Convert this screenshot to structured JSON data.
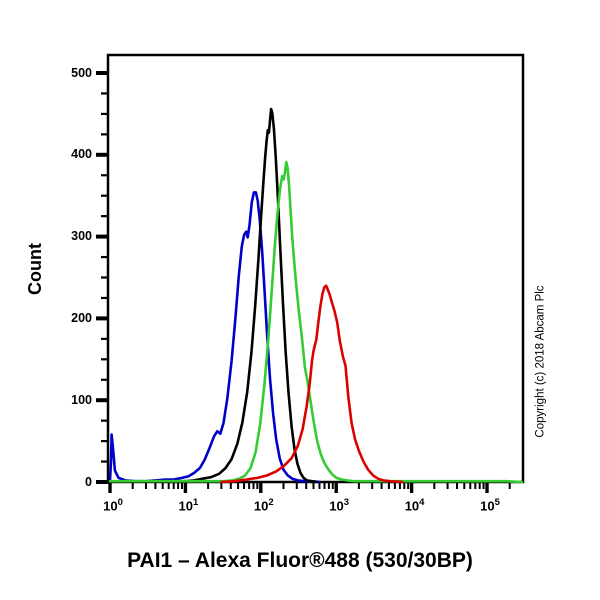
{
  "figure": {
    "title": "PAI1 – Alexa Fluor®488 (530/30BP)",
    "copyright_text": "Copyright (c) 2018 Abcam Plc",
    "y_axis": {
      "label": "Count",
      "major_ticks": [
        0,
        100,
        200,
        300,
        400,
        500
      ],
      "minor_step": 25,
      "max_count": 522
    },
    "x_axis": {
      "base": "10",
      "exponents": [
        0,
        1,
        2,
        3,
        4,
        5
      ],
      "max_value": 300000
    }
  },
  "chart_data": {
    "type": "line",
    "subtype": "flow-cytometry-histogram",
    "title": "PAI1 – Alexa Fluor®488 (530/30BP)",
    "xlabel": "PAI1 – Alexa Fluor®488 (530/30BP)",
    "ylabel": "Count",
    "x_scale": "log10",
    "xlim": [
      1,
      300000
    ],
    "ylim": [
      0,
      522
    ],
    "grid": false,
    "legend_position": "none",
    "axis_color": "#000000",
    "series": [
      {
        "name": "blue",
        "color": "#0000cc",
        "points": [
          [
            1,
            2
          ],
          [
            1.03,
            25
          ],
          [
            1.05,
            58
          ],
          [
            1.1,
            40
          ],
          [
            1.16,
            14
          ],
          [
            1.3,
            5
          ],
          [
            1.6,
            2
          ],
          [
            2.2,
            1
          ],
          [
            3,
            1
          ],
          [
            4,
            2
          ],
          [
            5.5,
            3
          ],
          [
            7,
            3
          ],
          [
            9,
            5
          ],
          [
            11,
            7
          ],
          [
            13,
            11
          ],
          [
            15.5,
            17
          ],
          [
            18,
            27
          ],
          [
            21,
            42
          ],
          [
            24,
            56
          ],
          [
            26.5,
            62
          ],
          [
            29,
            59
          ],
          [
            32,
            72
          ],
          [
            36,
            102
          ],
          [
            41,
            148
          ],
          [
            46,
            200
          ],
          [
            51,
            252
          ],
          [
            56,
            288
          ],
          [
            60,
            302
          ],
          [
            64,
            306
          ],
          [
            67,
            299
          ],
          [
            71,
            315
          ],
          [
            76,
            342
          ],
          [
            81,
            354
          ],
          [
            86,
            354
          ],
          [
            91,
            344
          ],
          [
            97,
            320
          ],
          [
            104,
            283
          ],
          [
            112,
            235
          ],
          [
            121,
            182
          ],
          [
            132,
            128
          ],
          [
            145,
            85
          ],
          [
            160,
            52
          ],
          [
            178,
            29
          ],
          [
            200,
            15
          ],
          [
            228,
            8
          ],
          [
            262,
            4
          ],
          [
            310,
            2
          ],
          [
            380,
            1
          ],
          [
            480,
            1
          ],
          [
            600,
            0
          ]
        ]
      },
      {
        "name": "black",
        "color": "#000000",
        "points": [
          [
            6,
            0
          ],
          [
            8,
            1
          ],
          [
            10,
            1
          ],
          [
            13,
            2
          ],
          [
            17,
            4
          ],
          [
            22,
            6
          ],
          [
            28,
            10
          ],
          [
            34,
            17
          ],
          [
            41,
            28
          ],
          [
            49,
            47
          ],
          [
            57,
            73
          ],
          [
            66,
            110
          ],
          [
            75,
            158
          ],
          [
            84,
            214
          ],
          [
            93,
            272
          ],
          [
            101,
            325
          ],
          [
            108,
            365
          ],
          [
            114,
            396
          ],
          [
            119,
            416
          ],
          [
            124,
            430
          ],
          [
            128,
            427
          ],
          [
            133,
            443
          ],
          [
            137,
            456
          ],
          [
            142,
            451
          ],
          [
            149,
            432
          ],
          [
            158,
            396
          ],
          [
            169,
            345
          ],
          [
            182,
            282
          ],
          [
            197,
            218
          ],
          [
            214,
            158
          ],
          [
            234,
            108
          ],
          [
            256,
            68
          ],
          [
            280,
            40
          ],
          [
            307,
            22
          ],
          [
            336,
            11
          ],
          [
            370,
            5
          ],
          [
            410,
            2
          ],
          [
            470,
            1
          ],
          [
            560,
            0
          ]
        ]
      },
      {
        "name": "green",
        "color": "#33cc33",
        "points": [
          [
            1,
            1
          ],
          [
            3,
            1
          ],
          [
            8,
            1
          ],
          [
            15,
            1
          ],
          [
            25,
            1
          ],
          [
            33,
            1
          ],
          [
            42,
            2
          ],
          [
            52,
            4
          ],
          [
            62,
            8
          ],
          [
            73,
            17
          ],
          [
            85,
            36
          ],
          [
            98,
            70
          ],
          [
            112,
            120
          ],
          [
            126,
            176
          ],
          [
            140,
            235
          ],
          [
            154,
            290
          ],
          [
            167,
            330
          ],
          [
            180,
            358
          ],
          [
            192,
            374
          ],
          [
            201,
            370
          ],
          [
            209,
            378
          ],
          [
            218,
            391
          ],
          [
            227,
            384
          ],
          [
            237,
            362
          ],
          [
            249,
            330
          ],
          [
            262,
            298
          ],
          [
            278,
            268
          ],
          [
            296,
            240
          ],
          [
            320,
            208
          ],
          [
            350,
            178
          ],
          [
            385,
            140
          ],
          [
            415,
            124
          ],
          [
            455,
            100
          ],
          [
            505,
            73
          ],
          [
            560,
            50
          ],
          [
            625,
            34
          ],
          [
            700,
            23
          ],
          [
            790,
            15
          ],
          [
            890,
            9
          ],
          [
            1010,
            5
          ],
          [
            1180,
            3
          ],
          [
            1400,
            2
          ],
          [
            1700,
            1
          ],
          [
            2500,
            1
          ],
          [
            5000,
            1
          ],
          [
            15000,
            1
          ],
          [
            60000,
            1
          ],
          [
            180000,
            1
          ],
          [
            290000,
            0
          ]
        ]
      },
      {
        "name": "red",
        "color": "#dd0000",
        "points": [
          [
            30,
            0
          ],
          [
            45,
            1
          ],
          [
            65,
            3
          ],
          [
            90,
            5
          ],
          [
            120,
            8
          ],
          [
            160,
            13
          ],
          [
            205,
            20
          ],
          [
            255,
            29
          ],
          [
            310,
            44
          ],
          [
            360,
            65
          ],
          [
            405,
            92
          ],
          [
            445,
            120
          ],
          [
            478,
            148
          ],
          [
            500,
            160
          ],
          [
            520,
            167
          ],
          [
            545,
            174
          ],
          [
            575,
            193
          ],
          [
            615,
            214
          ],
          [
            655,
            229
          ],
          [
            695,
            238
          ],
          [
            735,
            240
          ],
          [
            775,
            235
          ],
          [
            820,
            229
          ],
          [
            880,
            219
          ],
          [
            950,
            209
          ],
          [
            1030,
            195
          ],
          [
            1120,
            172
          ],
          [
            1230,
            153
          ],
          [
            1330,
            142
          ],
          [
            1450,
            103
          ],
          [
            1600,
            72
          ],
          [
            1780,
            52
          ],
          [
            2000,
            38
          ],
          [
            2300,
            25
          ],
          [
            2650,
            15
          ],
          [
            3100,
            8
          ],
          [
            3600,
            4
          ],
          [
            4200,
            2
          ],
          [
            5200,
            1
          ],
          [
            7500,
            0
          ]
        ]
      }
    ]
  }
}
